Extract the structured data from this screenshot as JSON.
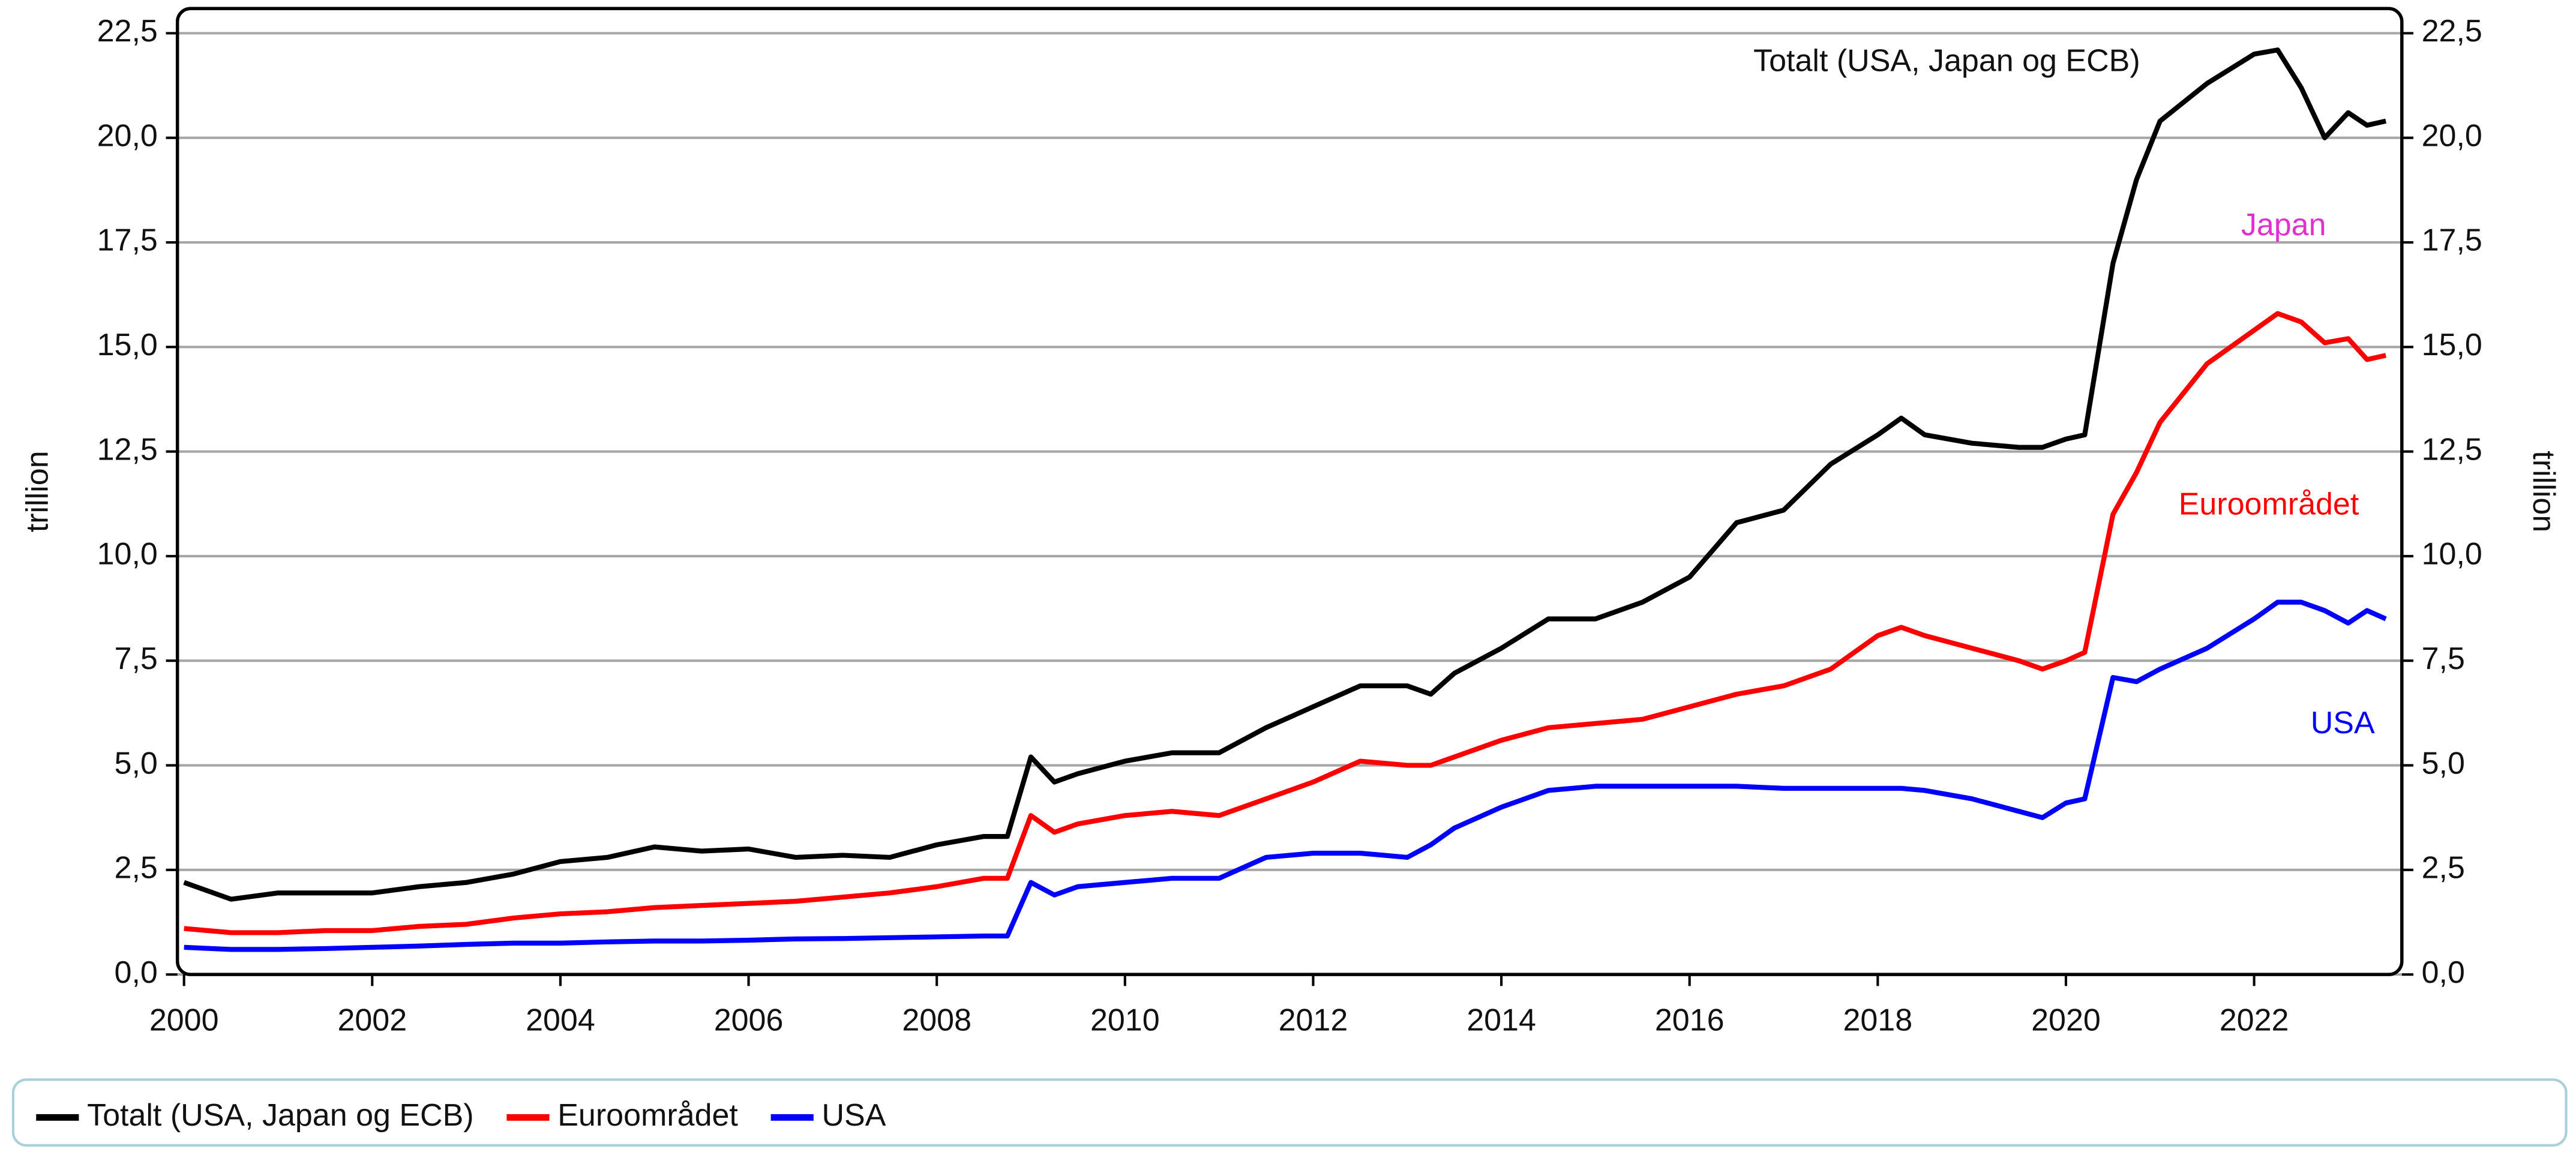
{
  "chart_data": {
    "type": "line",
    "ylabel": "trillion",
    "y2label": "trillion",
    "annotations": [
      "Totalt (USA, Japan og ECB)",
      "Japan",
      "Euroområdet",
      "USA"
    ],
    "xlim": [
      1999.93,
      2023.57
    ],
    "xticks": [
      2000,
      2002,
      2004,
      2006,
      2008,
      2010,
      2012,
      2014,
      2016,
      2018,
      2020,
      2022
    ],
    "ylim": [
      0,
      22.5
    ],
    "yticks": [
      {
        "value": 0,
        "label": "0,0"
      },
      {
        "value": 2.5,
        "label": "2,5"
      },
      {
        "value": 5,
        "label": "5,0"
      },
      {
        "value": 7.5,
        "label": "7,5"
      },
      {
        "value": 10,
        "label": "10,0"
      },
      {
        "value": 12.5,
        "label": "12,5"
      },
      {
        "value": 15,
        "label": "15,0"
      },
      {
        "value": 17.5,
        "label": "17,5"
      },
      {
        "value": 20,
        "label": "20,0"
      },
      {
        "value": 22.5,
        "label": "22,5"
      }
    ],
    "y2lim": [
      0,
      22.5
    ],
    "y2ticks": [
      {
        "value": 0,
        "label": "0,0"
      },
      {
        "value": 2.5,
        "label": "2,5"
      },
      {
        "value": 5,
        "label": "5,0"
      },
      {
        "value": 7.5,
        "label": "7,5"
      },
      {
        "value": 10,
        "label": "10,0"
      },
      {
        "value": 12.5,
        "label": "12,5"
      },
      {
        "value": 15,
        "label": "15,0"
      },
      {
        "value": 17.5,
        "label": "17,5"
      },
      {
        "value": 20,
        "label": "20,0"
      },
      {
        "value": 22.5,
        "label": "22,5"
      }
    ],
    "grid": true,
    "legend": "bottom",
    "x": [
      2000,
      2000.5,
      2001,
      2001.5,
      2002,
      2002.5,
      2003,
      2003.5,
      2004,
      2004.5,
      2005,
      2005.5,
      2006,
      2006.5,
      2007,
      2007.5,
      2008,
      2008.5,
      2008.75,
      2009,
      2009.25,
      2009.5,
      2010,
      2010.5,
      2011,
      2011.5,
      2012,
      2012.5,
      2013,
      2013.25,
      2013.5,
      2014,
      2014.5,
      2015,
      2015.5,
      2016,
      2016.5,
      2017,
      2017.5,
      2018,
      2018.25,
      2018.5,
      2019,
      2019.5,
      2019.75,
      2020,
      2020.2,
      2020.5,
      2020.75,
      2021,
      2021.5,
      2022,
      2022.25,
      2022.5,
      2022.75,
      2023,
      2023.2,
      2023.4
    ],
    "series": [
      {
        "name": "Totalt (USA, Japan og ECB)",
        "color": "#000000",
        "values": [
          2.2,
          1.8,
          1.95,
          1.95,
          1.95,
          2.1,
          2.2,
          2.4,
          2.7,
          2.8,
          3.05,
          2.95,
          3.0,
          2.8,
          2.85,
          2.8,
          3.1,
          3.3,
          3.3,
          5.2,
          4.6,
          4.8,
          5.1,
          5.3,
          5.3,
          5.9,
          6.4,
          6.9,
          6.9,
          6.7,
          7.2,
          7.8,
          8.5,
          8.5,
          8.9,
          9.5,
          10.8,
          11.1,
          12.2,
          12.9,
          13.3,
          12.9,
          12.7,
          12.6,
          12.6,
          12.8,
          12.9,
          17.0,
          19.0,
          20.4,
          21.3,
          22.0,
          22.1,
          21.2,
          20.0,
          20.6,
          20.3,
          20.4
        ]
      },
      {
        "name": "Euroområdet",
        "color": "#ff0000",
        "values": [
          1.1,
          1.0,
          1.0,
          1.05,
          1.05,
          1.15,
          1.2,
          1.35,
          1.45,
          1.5,
          1.6,
          1.65,
          1.7,
          1.75,
          1.85,
          1.95,
          2.1,
          2.3,
          2.3,
          3.8,
          3.4,
          3.6,
          3.8,
          3.9,
          3.8,
          4.2,
          4.6,
          5.1,
          5.0,
          5.0,
          5.2,
          5.6,
          5.9,
          6.0,
          6.1,
          6.4,
          6.7,
          6.9,
          7.3,
          8.1,
          8.3,
          8.1,
          7.8,
          7.5,
          7.3,
          7.5,
          7.7,
          11.0,
          12.0,
          13.2,
          14.6,
          15.4,
          15.8,
          15.6,
          15.1,
          15.2,
          14.7,
          14.8
        ]
      },
      {
        "name": "USA",
        "color": "#0000ff",
        "values": [
          0.65,
          0.6,
          0.6,
          0.62,
          0.65,
          0.68,
          0.72,
          0.75,
          0.75,
          0.78,
          0.8,
          0.8,
          0.82,
          0.85,
          0.86,
          0.88,
          0.9,
          0.92,
          0.92,
          2.2,
          1.9,
          2.1,
          2.2,
          2.3,
          2.3,
          2.8,
          2.9,
          2.9,
          2.8,
          3.1,
          3.5,
          4.0,
          4.4,
          4.5,
          4.5,
          4.5,
          4.5,
          4.45,
          4.45,
          4.45,
          4.45,
          4.4,
          4.2,
          3.9,
          3.75,
          4.1,
          4.2,
          7.1,
          7.0,
          7.3,
          7.8,
          8.5,
          8.9,
          8.9,
          8.7,
          8.4,
          8.7,
          8.5
        ]
      }
    ]
  }
}
